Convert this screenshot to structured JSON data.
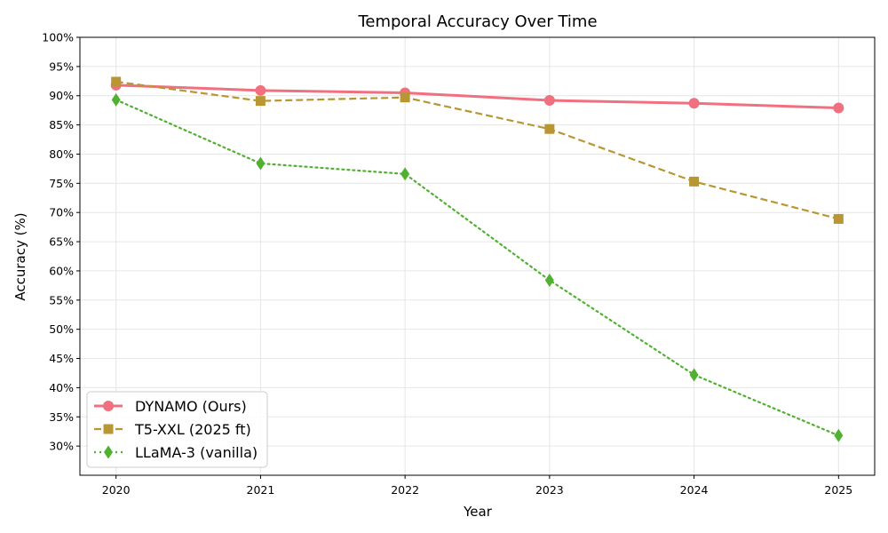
{
  "chart_data": {
    "type": "line",
    "title": "Temporal Accuracy Over Time",
    "xlabel": "Year",
    "ylabel": "Accuracy (%)",
    "x": [
      "2020",
      "2021",
      "2022",
      "2023",
      "2024",
      "2025"
    ],
    "xlim": [
      2019.75,
      2025.25
    ],
    "ylim": [
      25,
      100
    ],
    "yticks": [
      30,
      35,
      40,
      45,
      50,
      55,
      60,
      65,
      70,
      75,
      80,
      85,
      90,
      95,
      100
    ],
    "ytick_labels": [
      "30%",
      "35%",
      "40%",
      "45%",
      "50%",
      "55%",
      "60%",
      "65%",
      "70%",
      "75%",
      "80%",
      "85%",
      "90%",
      "95%",
      "100%"
    ],
    "grid": true,
    "legend_position": "bottom-left",
    "series": [
      {
        "name": "DYNAMO (Ours)",
        "values": [
          91.8,
          90.9,
          90.5,
          89.2,
          88.7,
          87.9
        ],
        "color": "#f0707f",
        "marker": "circle",
        "line_style": "solid"
      },
      {
        "name": "T5-XXL (2025 ft)",
        "values": [
          92.4,
          89.1,
          89.7,
          84.3,
          75.3,
          68.9
        ],
        "color": "#b89633",
        "marker": "square",
        "line_style": "dashed"
      },
      {
        "name": "LLaMA-3 (vanilla)",
        "values": [
          89.3,
          78.4,
          76.6,
          58.4,
          42.2,
          31.8
        ],
        "color": "#4fb12f",
        "marker": "diamond",
        "line_style": "dotted"
      }
    ]
  }
}
